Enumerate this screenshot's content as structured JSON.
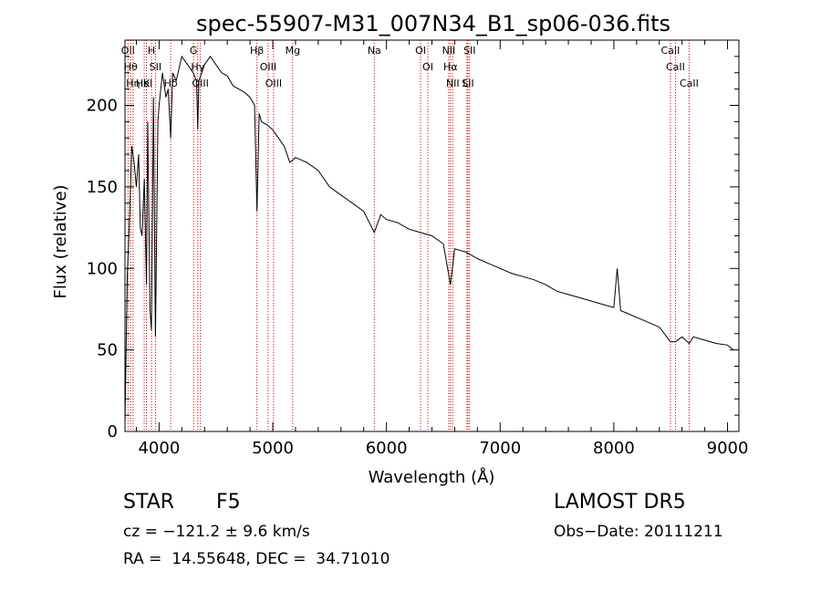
{
  "chart_data": {
    "type": "line",
    "title": "spec-55907-M31_007N34_B1_sp06-036.fits",
    "xlabel": "Wavelength (Å)",
    "ylabel": "Flux (relative)",
    "xlim": [
      3700,
      9100
    ],
    "ylim": [
      0,
      240
    ],
    "x_ticks": [
      4000,
      5000,
      6000,
      7000,
      8000,
      9000
    ],
    "x_tick_labels": [
      "4000",
      "5000",
      "6000",
      "7000",
      "8000",
      "9000"
    ],
    "y_ticks": [
      0,
      50,
      100,
      150,
      200
    ],
    "y_tick_labels": [
      "0",
      "50",
      "100",
      "150",
      "200"
    ],
    "grid": false,
    "series": [
      {
        "x": [
          3700,
          3720,
          3740,
          3760,
          3780,
          3800,
          3820,
          3835,
          3850,
          3870,
          3889,
          3900,
          3920,
          3933,
          3950,
          3968,
          3990,
          4000,
          4030,
          4060,
          4080,
          4102,
          4120,
          4150,
          4200,
          4250,
          4300,
          4330,
          4340,
          4350,
          4400,
          4450,
          4500,
          4550,
          4600,
          4650,
          4700,
          4750,
          4800,
          4840,
          4861,
          4880,
          4900,
          4950,
          5000,
          5050,
          5100,
          5150,
          5200,
          5300,
          5400,
          5500,
          5600,
          5700,
          5800,
          5893,
          5950,
          6000,
          6100,
          6200,
          6300,
          6400,
          6500,
          6563,
          6600,
          6700,
          6800,
          6900,
          7000,
          7100,
          7200,
          7300,
          7400,
          7500,
          7600,
          7700,
          7800,
          7900,
          8000,
          8030,
          8060,
          8100,
          8200,
          8300,
          8400,
          8498,
          8542,
          8600,
          8662,
          8700,
          8800,
          8900,
          9000,
          9050
        ],
        "y": [
          5,
          95,
          130,
          175,
          165,
          150,
          170,
          125,
          120,
          155,
          90,
          190,
          75,
          62,
          205,
          58,
          190,
          200,
          220,
          205,
          210,
          180,
          220,
          215,
          230,
          225,
          220,
          215,
          185,
          215,
          225,
          230,
          225,
          220,
          218,
          212,
          210,
          208,
          205,
          200,
          135,
          195,
          190,
          188,
          185,
          180,
          175,
          165,
          168,
          165,
          160,
          150,
          145,
          140,
          135,
          122,
          133,
          130,
          128,
          124,
          122,
          120,
          115,
          90,
          112,
          110,
          106,
          103,
          100,
          97,
          95,
          93,
          90,
          86,
          84,
          82,
          80,
          78,
          76,
          100,
          74,
          73,
          70,
          67,
          64,
          55,
          55,
          58,
          54,
          58,
          56,
          54,
          53,
          50
        ]
      }
    ],
    "line_markers": [
      {
        "wavelength": 3727,
        "label": "OII"
      },
      {
        "wavelength": 3750,
        "label": "Hθ"
      },
      {
        "wavelength": 3771,
        "label": "Hη"
      },
      {
        "wavelength": 3869,
        "label": "HeI"
      },
      {
        "wavelength": 3889,
        "label": "K"
      },
      {
        "wavelength": 3933,
        "label": "H"
      },
      {
        "wavelength": 3968,
        "label": "SII"
      },
      {
        "wavelength": 4102,
        "label": "Hδ"
      },
      {
        "wavelength": 4303,
        "label": "G"
      },
      {
        "wavelength": 4340,
        "label": "Hγ"
      },
      {
        "wavelength": 4363,
        "label": "OIII"
      },
      {
        "wavelength": 4861,
        "label": "Hβ"
      },
      {
        "wavelength": 4959,
        "label": "OIII"
      },
      {
        "wavelength": 5007,
        "label": "OIII"
      },
      {
        "wavelength": 5175,
        "label": "Mg"
      },
      {
        "wavelength": 5893,
        "label": "Na"
      },
      {
        "wavelength": 6300,
        "label": "OI"
      },
      {
        "wavelength": 6364,
        "label": "OI"
      },
      {
        "wavelength": 6548,
        "label": "NII"
      },
      {
        "wavelength": 6563,
        "label": "Hα"
      },
      {
        "wavelength": 6583,
        "label": "NII"
      },
      {
        "wavelength": 6708,
        "label": "Li"
      },
      {
        "wavelength": 6716,
        "label": "SII"
      },
      {
        "wavelength": 6731,
        "label": "SII"
      },
      {
        "wavelength": 8498,
        "label": "CaII"
      },
      {
        "wavelength": 8542,
        "label": "CaII"
      },
      {
        "wavelength": 8662,
        "label": "CaII"
      }
    ]
  },
  "info": {
    "class": "STAR",
    "subclass": "F5",
    "survey": "LAMOST DR5",
    "cz": "cz = −121.2 ± 9.6 km/s",
    "obs_date": "Obs−Date: 20111211",
    "coords": "RA =  14.55648, DEC =  34.71010"
  },
  "colors": {
    "line_marker": "#cc0000",
    "spectrum": "#000000",
    "axis": "#000000"
  }
}
